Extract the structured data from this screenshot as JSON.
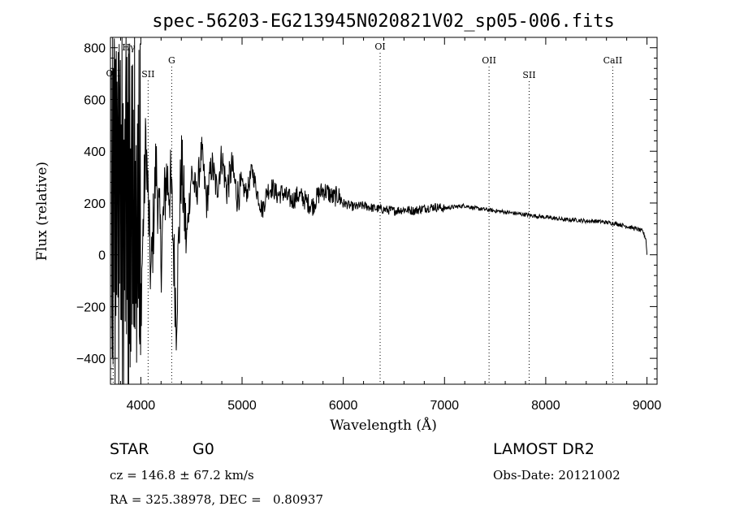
{
  "chart_data": {
    "type": "line",
    "title": "spec-56203-EG213945N020821V02_sp05-006.fits",
    "xlabel": "Wavelength (Å)",
    "ylabel": "Flux (relative)",
    "xlim": [
      3700,
      9100
    ],
    "ylim": [
      -500,
      840
    ],
    "xticks": [
      4000,
      5000,
      6000,
      7000,
      8000,
      9000
    ],
    "yticks": [
      -400,
      -200,
      0,
      200,
      400,
      600,
      800
    ],
    "grid": false,
    "series": [
      {
        "x": [
          3710,
          3735,
          3760,
          3785,
          3810,
          3840,
          3870,
          3900,
          3930,
          3960,
          4000,
          4050,
          4100,
          4150,
          4200,
          4250,
          4300,
          4350,
          4400,
          4450,
          4500,
          4550,
          4600,
          4650,
          4700,
          4750,
          4800,
          4850,
          4900,
          4950,
          5000,
          5050,
          5100,
          5150,
          5200,
          5250,
          5300,
          5350,
          5400,
          5450,
          5500,
          5550,
          5600,
          5650,
          5700,
          5750,
          5800,
          5850,
          5900,
          5950,
          6000,
          6100,
          6200,
          6300,
          6400,
          6500,
          6600,
          6700,
          6800,
          6900,
          7000,
          7100,
          7200,
          7300,
          7400,
          7500,
          7600,
          7700,
          7800,
          7900,
          8000,
          8100,
          8200,
          8300,
          8400,
          8500,
          8600,
          8700,
          8800,
          8900,
          8960,
          8990,
          9000
        ],
        "y": [
          0,
          750,
          -400,
          700,
          -450,
          650,
          -300,
          600,
          -350,
          550,
          -200,
          450,
          -100,
          350,
          0,
          300,
          250,
          -240,
          350,
          50,
          320,
          230,
          400,
          200,
          350,
          250,
          380,
          250,
          340,
          230,
          260,
          240,
          330,
          240,
          170,
          250,
          260,
          230,
          240,
          220,
          210,
          230,
          220,
          200,
          190,
          230,
          250,
          240,
          220,
          230,
          200,
          185,
          190,
          180,
          175,
          170,
          175,
          170,
          180,
          185,
          180,
          185,
          190,
          180,
          175,
          170,
          165,
          160,
          155,
          150,
          145,
          140,
          135,
          135,
          130,
          130,
          125,
          120,
          110,
          100,
          90,
          60,
          0
        ]
      }
    ],
    "lines": [
      {
        "label": "OII",
        "x": 3727,
        "dotted": true
      },
      {
        "label": "Hγ",
        "x": 3880,
        "dotted": false
      },
      {
        "label": "SII",
        "x": 4072,
        "dotted": true
      },
      {
        "label": "G",
        "x": 4305,
        "dotted": true
      },
      {
        "label": "OI",
        "x": 6364,
        "dotted": true
      },
      {
        "label": "OII",
        "x": 7440,
        "dotted": true
      },
      {
        "label": "SII",
        "x": 7836,
        "dotted": true
      },
      {
        "label": "CaII",
        "x": 8662,
        "dotted": true
      }
    ]
  },
  "info": {
    "object_class": "STAR",
    "subclass": "G0",
    "survey": "LAMOST DR2",
    "cz": "cz = 146.8 ± 67.2 km/s",
    "obs_date": "Obs-Date: 20121002",
    "coords": "RA = 325.38978, DEC =   0.80937"
  }
}
